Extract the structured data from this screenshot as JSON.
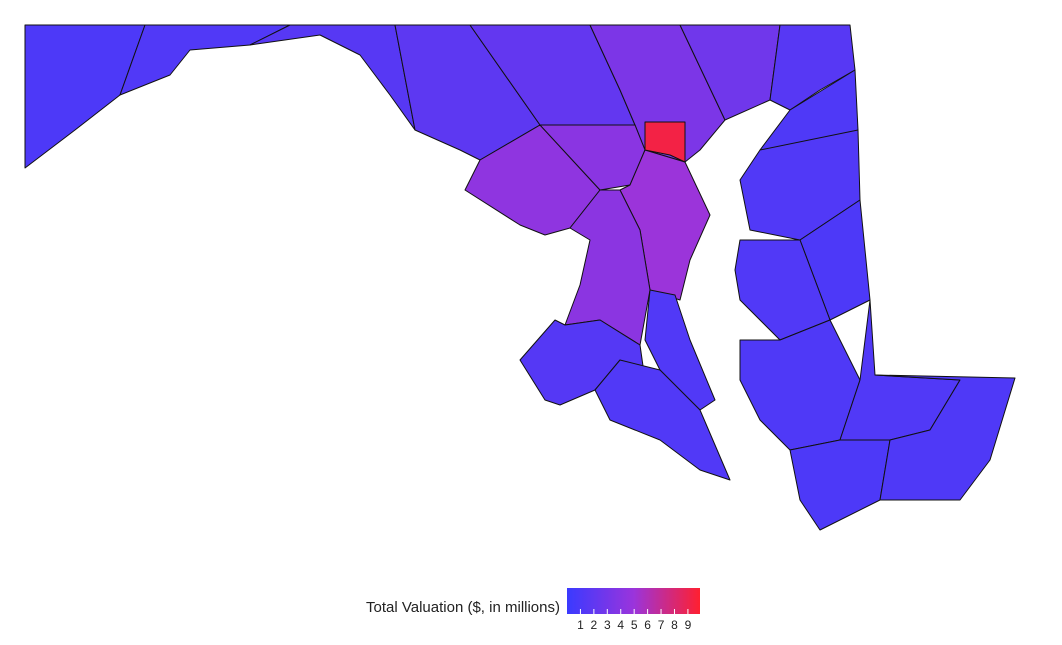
{
  "map": {
    "type": "choropleth",
    "regions": {
      "values": [
        1.0,
        1.2,
        1.5,
        1.8,
        2.1,
        3.4,
        2.8,
        1.5,
        4.4,
        4.1,
        5.0,
        4.2,
        1.4,
        1.2,
        1.2,
        1.1,
        1.2,
        1.0,
        1.2,
        1.1,
        1.2,
        1.0,
        1.1,
        9.3
      ]
    },
    "legend": {
      "title": "Total Valuation ($, in millions)",
      "clim": [
        0,
        9.9
      ],
      "ticks": [
        1,
        2,
        3,
        4,
        5,
        6,
        7,
        8,
        9
      ],
      "colors": [
        "#3a3aff",
        "#9a34dc",
        "#ff2030"
      ]
    }
  }
}
